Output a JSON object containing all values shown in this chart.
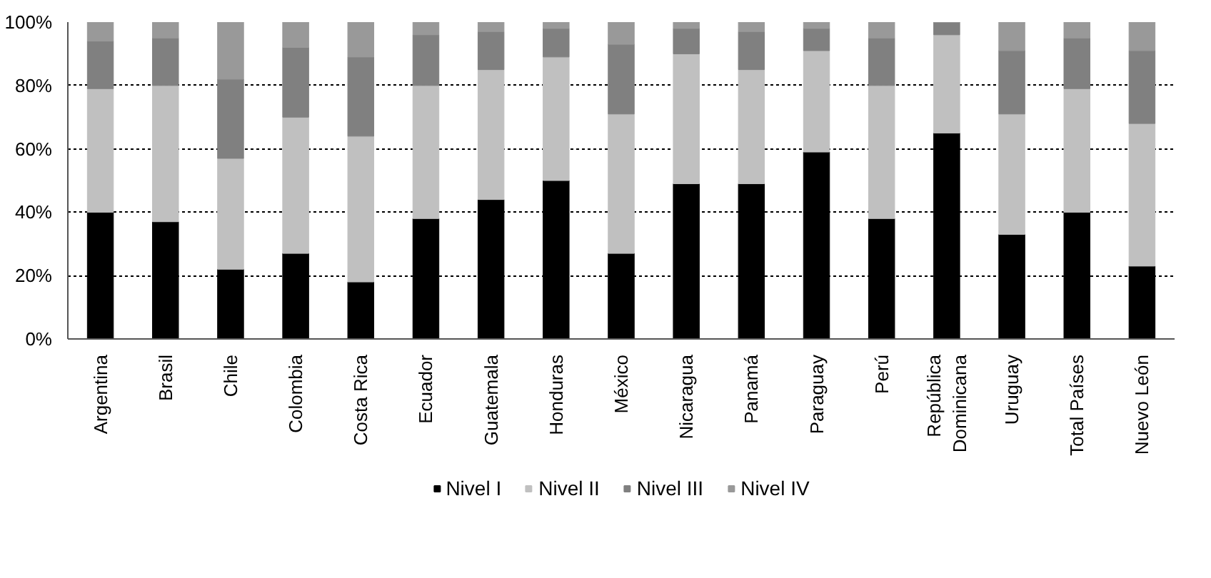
{
  "chart_data": {
    "type": "bar",
    "stacked": true,
    "categories": [
      "Argentina",
      "Brasil",
      "Chile",
      "Colombia",
      "Costa Rica",
      "Ecuador",
      "Guatemala",
      "Honduras",
      "México",
      "Nicaragua",
      "Panamá",
      "Paraguay",
      "Perú",
      "República Dominicana",
      "Uruguay",
      "Total Países",
      "Nuevo León"
    ],
    "series": [
      {
        "name": "Nivel I",
        "color": "#000000",
        "values": [
          40,
          37,
          22,
          27,
          18,
          38,
          44,
          50,
          27,
          49,
          49,
          59,
          38,
          65,
          33,
          40,
          23
        ]
      },
      {
        "name": "Nivel II",
        "color": "#c0c0c0",
        "values": [
          39,
          43,
          35,
          43,
          46,
          42,
          41,
          39,
          44,
          41,
          36,
          32,
          42,
          31,
          38,
          39,
          45
        ]
      },
      {
        "name": "Nivel III",
        "color": "#808080",
        "values": [
          15,
          15,
          25,
          22,
          25,
          16,
          12,
          9,
          22,
          8,
          12,
          7,
          15,
          4,
          20,
          16,
          23
        ]
      },
      {
        "name": "Nivel IV",
        "color": "#999999",
        "values": [
          6,
          5,
          18,
          8,
          11,
          4,
          3,
          2,
          7,
          2,
          3,
          2,
          5,
          0,
          9,
          5,
          9
        ]
      }
    ],
    "ylim": [
      0,
      100
    ],
    "yticks": [
      {
        "value": 0,
        "label": "0%"
      },
      {
        "value": 20,
        "label": "20%"
      },
      {
        "value": 40,
        "label": "40%"
      },
      {
        "value": 60,
        "label": "60%"
      },
      {
        "value": 80,
        "label": "80%"
      },
      {
        "value": 100,
        "label": "100%"
      }
    ],
    "grid": "y",
    "legend": "bottom"
  }
}
